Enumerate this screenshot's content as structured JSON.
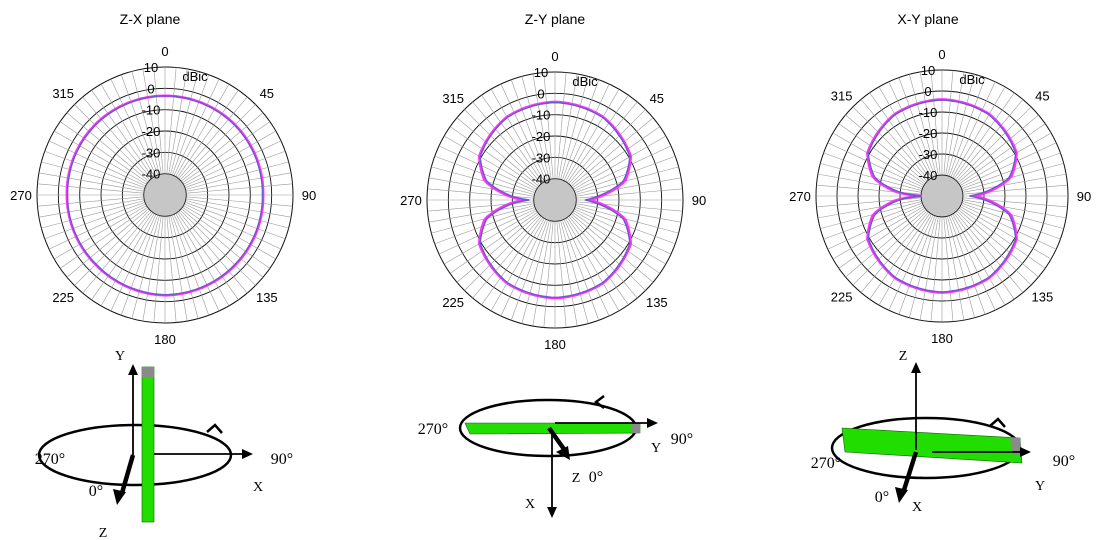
{
  "chart_data": [
    {
      "type": "polar",
      "title": "Z-X plane",
      "unit": "dBic",
      "r_ticks": [
        "10",
        "0",
        "-10",
        "-20",
        "-30",
        "-40"
      ],
      "rlim": [
        -50,
        10
      ],
      "angle_labels": [
        "0",
        "45",
        "90",
        "135",
        "180",
        "225",
        "270",
        "315"
      ],
      "series": [
        {
          "color": "#ff33ff",
          "r_at": [
            [
              0,
              -3.5
            ],
            [
              45,
              -3.5
            ],
            [
              90,
              -4
            ],
            [
              135,
              -3.5
            ],
            [
              180,
              -3
            ],
            [
              225,
              -4
            ],
            [
              270,
              -4
            ],
            [
              315,
              -3.5
            ],
            [
              360,
              -3.5
            ]
          ]
        },
        {
          "color": "#6a5acd",
          "r_at": [
            [
              0,
              -3.5
            ],
            [
              45,
              -3.8
            ],
            [
              90,
              -4.3
            ],
            [
              135,
              -3.8
            ],
            [
              180,
              -3.2
            ],
            [
              225,
              -4.2
            ],
            [
              270,
              -4.3
            ],
            [
              315,
              -3.8
            ],
            [
              360,
              -3.5
            ]
          ]
        }
      ],
      "axes_diagram": {
        "vertical": "Y",
        "horizontal": "X",
        "depth": "Z",
        "angle_left": "270°",
        "angle_right": "90°",
        "angle_front": "0°"
      }
    },
    {
      "type": "polar",
      "title": "Z-Y plane",
      "unit": "dBic",
      "r_ticks": [
        "10",
        "0",
        "-10",
        "-20",
        "-30",
        "-40"
      ],
      "rlim": [
        -50,
        10
      ],
      "angle_labels": [
        "0",
        "45",
        "90",
        "135",
        "180",
        "225",
        "270",
        "315"
      ],
      "series": [
        {
          "color": "#ff33ff",
          "r_at": [
            [
              0,
              -4
            ],
            [
              30,
              -5
            ],
            [
              60,
              -9
            ],
            [
              75,
              -16
            ],
            [
              85,
              -28
            ],
            [
              90,
              -34
            ],
            [
              95,
              -28
            ],
            [
              105,
              -16
            ],
            [
              120,
              -9
            ],
            [
              150,
              -5
            ],
            [
              180,
              -4
            ],
            [
              210,
              -5
            ],
            [
              240,
              -9
            ],
            [
              255,
              -16
            ],
            [
              265,
              -28
            ],
            [
              270,
              -36
            ],
            [
              275,
              -28
            ],
            [
              285,
              -16
            ],
            [
              300,
              -9
            ],
            [
              330,
              -5
            ],
            [
              360,
              -4
            ]
          ]
        },
        {
          "color": "#6a5acd",
          "r_at": [
            [
              0,
              -4.3
            ],
            [
              30,
              -5.3
            ],
            [
              60,
              -9.5
            ],
            [
              75,
              -17
            ],
            [
              85,
              -30
            ],
            [
              90,
              -36
            ],
            [
              95,
              -30
            ],
            [
              105,
              -17
            ],
            [
              120,
              -9.5
            ],
            [
              150,
              -5.3
            ],
            [
              180,
              -4.3
            ],
            [
              210,
              -5.3
            ],
            [
              240,
              -9.5
            ],
            [
              255,
              -17
            ],
            [
              265,
              -30
            ],
            [
              270,
              -38
            ],
            [
              275,
              -30
            ],
            [
              285,
              -17
            ],
            [
              300,
              -9.5
            ],
            [
              330,
              -5.3
            ],
            [
              360,
              -4.3
            ]
          ]
        }
      ],
      "axes_diagram": {
        "vertical": "X",
        "horizontal": "Y",
        "depth": "Z",
        "angle_left": "270°",
        "angle_right": "90°",
        "angle_front": "0°"
      }
    },
    {
      "type": "polar",
      "title": "X-Y plane",
      "unit": "dBic",
      "r_ticks": [
        "10",
        "0",
        "-10",
        "-20",
        "-30",
        "-40"
      ],
      "rlim": [
        -50,
        10
      ],
      "angle_labels": [
        "0",
        "45",
        "90",
        "135",
        "180",
        "225",
        "270",
        "315"
      ],
      "series": [
        {
          "color": "#ff33ff",
          "r_at": [
            [
              0,
              -4
            ],
            [
              30,
              -5
            ],
            [
              60,
              -9
            ],
            [
              75,
              -16
            ],
            [
              85,
              -28
            ],
            [
              90,
              -35
            ],
            [
              95,
              -28
            ],
            [
              105,
              -16
            ],
            [
              120,
              -9
            ],
            [
              150,
              -5
            ],
            [
              180,
              -4
            ],
            [
              210,
              -5
            ],
            [
              240,
              -9
            ],
            [
              255,
              -16
            ],
            [
              265,
              -28
            ],
            [
              270,
              -40
            ],
            [
              275,
              -28
            ],
            [
              285,
              -16
            ],
            [
              300,
              -9
            ],
            [
              330,
              -5
            ],
            [
              360,
              -4
            ]
          ]
        },
        {
          "color": "#6a5acd",
          "r_at": [
            [
              0,
              -4.3
            ],
            [
              30,
              -5.3
            ],
            [
              60,
              -9.5
            ],
            [
              75,
              -17
            ],
            [
              85,
              -30
            ],
            [
              90,
              -37
            ],
            [
              95,
              -30
            ],
            [
              105,
              -17
            ],
            [
              120,
              -9.5
            ],
            [
              150,
              -5.3
            ],
            [
              180,
              -4.3
            ],
            [
              210,
              -5.3
            ],
            [
              240,
              -9.5
            ],
            [
              255,
              -17
            ],
            [
              265,
              -30
            ],
            [
              270,
              -40
            ],
            [
              275,
              -30
            ],
            [
              285,
              -17
            ],
            [
              300,
              -9.5
            ],
            [
              330,
              -5.3
            ],
            [
              360,
              -4.3
            ]
          ]
        }
      ],
      "axes_diagram": {
        "vertical": "Z",
        "horizontal": "Y",
        "depth": "X",
        "angle_left": "270°",
        "angle_right": "90°",
        "angle_front": "0°"
      }
    }
  ]
}
